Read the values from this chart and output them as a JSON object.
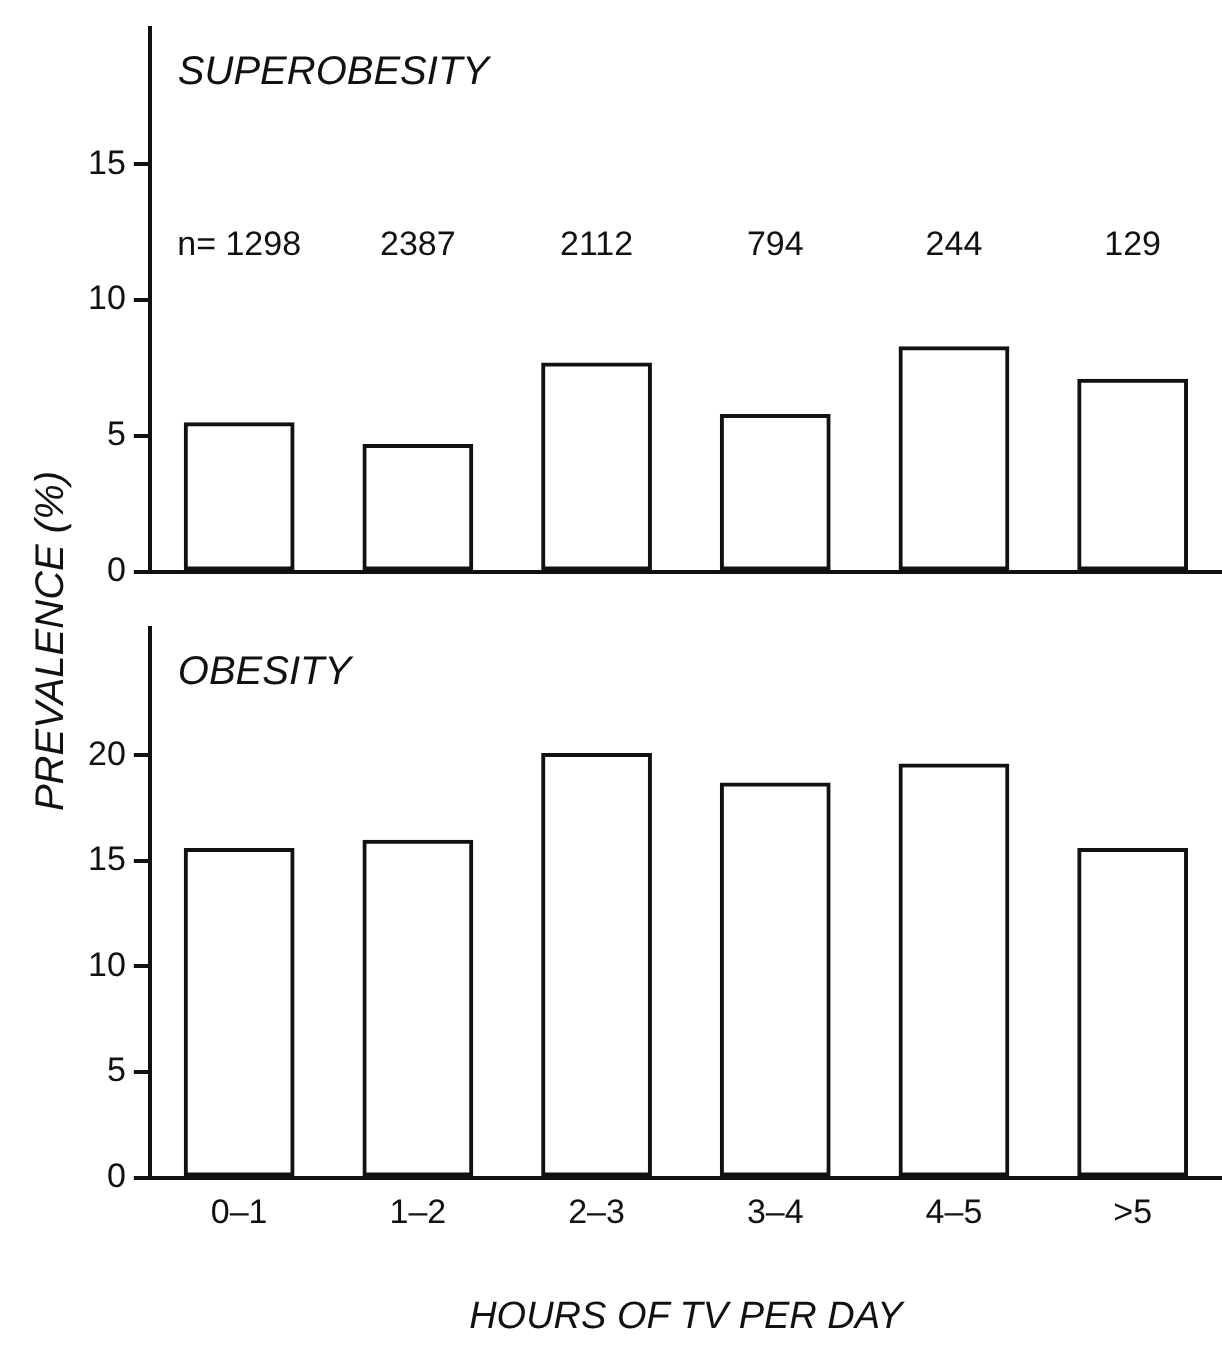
{
  "chart_data": [
    {
      "type": "bar",
      "title": "SUPEROBESITY",
      "ylabel": "PREVALENCE (%)",
      "categories": [
        null,
        null,
        null,
        null,
        null,
        null
      ],
      "values": [
        5.5,
        4.7,
        7.7,
        5.8,
        8.3,
        7.1
      ],
      "color": "#111111",
      "ylim": [
        0,
        20
      ],
      "yticks": [
        0,
        5,
        10,
        15
      ],
      "grid": false,
      "legend": false,
      "tick_labels": "y",
      "annotations": [
        "n= 1298",
        "2387",
        "2112",
        "794",
        "244",
        "129"
      ]
    },
    {
      "type": "bar",
      "title": "OBESITY",
      "xlabel": "HOURS OF TV PER DAY",
      "categories": [
        "0–1",
        "1–2",
        "2–3",
        "3–4",
        "4–5",
        ">5"
      ],
      "values": [
        15.6,
        16.0,
        20.1,
        18.7,
        19.6,
        15.6
      ],
      "color": "#111111",
      "ylim": [
        0,
        26
      ],
      "yticks": [
        0,
        5,
        10,
        15,
        20
      ],
      "grid": false,
      "legend": false
    }
  ]
}
